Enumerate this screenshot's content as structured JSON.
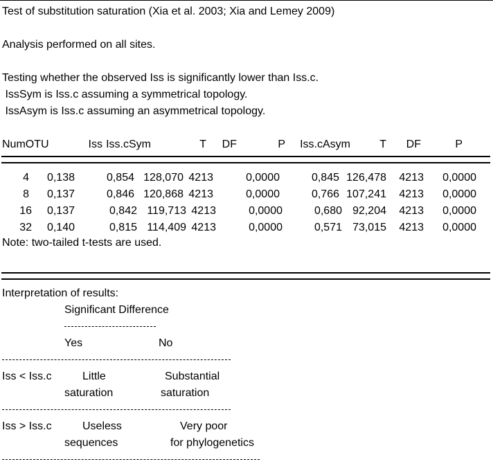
{
  "title": "Test of substitution saturation (Xia et al. 2003; Xia and Lemey 2009)",
  "analysis_line": "Analysis performed on all sites.",
  "hypothesis": {
    "line1": "Testing whether the observed Iss is significantly lower than Iss.c.",
    "line2": " IssSym is Iss.c assuming a symmetrical topology.",
    "line3": " IssAsym is Iss.c assuming an asymmetrical topology."
  },
  "table": {
    "headers": [
      "NumOTU",
      "Iss",
      "Iss.cSym",
      "T",
      "DF",
      "P",
      "Iss.cAsym",
      "T",
      "DF",
      "P"
    ],
    "rows": [
      [
        "4",
        "0,138",
        "0,854",
        "128,070",
        "4213",
        "0,0000",
        "0,845",
        "126,478",
        "4213",
        "0,0000"
      ],
      [
        "8",
        "0,137",
        "0,846",
        "120,868",
        "4213",
        "0,0000",
        "0,766",
        "107,241",
        "4213",
        "0,0000"
      ],
      [
        "16",
        "0,137",
        "0,842",
        "119,713",
        "4213",
        "0,0000",
        "0,680",
        "92,204",
        "4213",
        "0,0000"
      ],
      [
        "32",
        "0,140",
        "0,815",
        "114,409",
        "4213",
        "0,0000",
        "0,571",
        "73,015",
        "4213",
        "0,0000"
      ]
    ],
    "note": "Note: two-tailed t-tests are used."
  },
  "interpretation": {
    "heading": "Interpretation of results:",
    "significant_difference": "Significant Difference",
    "yes": "Yes",
    "no": "No",
    "row1_condition": "Iss < Iss.c",
    "row1_yes_line1": "Little",
    "row1_yes_line2": "saturation",
    "row1_no_line1": "Substantial",
    "row1_no_line2": "saturation",
    "row2_condition": "Iss > Iss.c",
    "row2_yes_line1": "Useless",
    "row2_yes_line2": "sequences",
    "row2_no_line1": "Very poor",
    "row2_no_line2": "for phylogenetics"
  }
}
